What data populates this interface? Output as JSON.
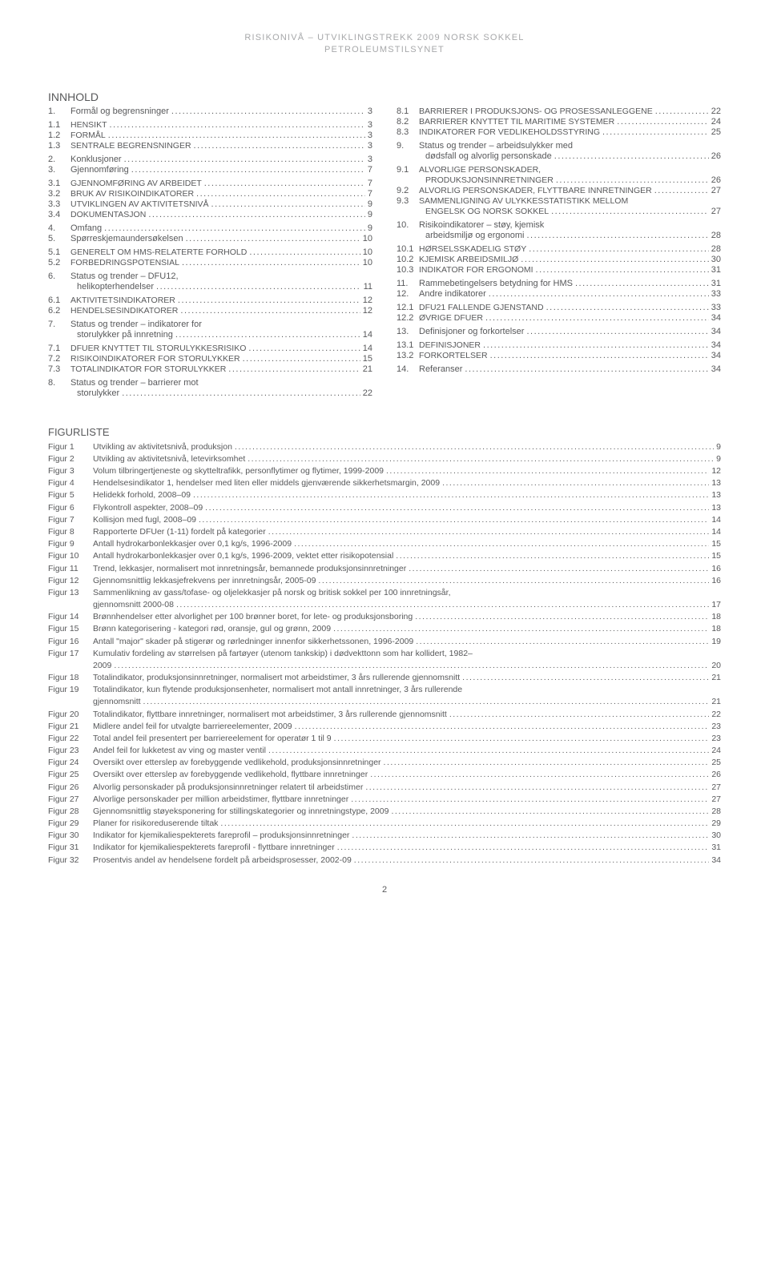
{
  "header": {
    "line1": "RISIKONIVÅ – UTVIKLINGSTREKK 2009 NORSK SOKKEL",
    "line2": "PETROLEUMSTILSYNET"
  },
  "innhold_title": "INNHOLD",
  "toc_left": [
    {
      "num": "1.",
      "label": "Formål og begrensninger",
      "page": "3",
      "lvl": 1
    },
    {
      "num": "1.1",
      "label": "HENSIKT",
      "page": "3",
      "lvl": 2,
      "sc": true
    },
    {
      "num": "1.2",
      "label": "FORMÅL",
      "page": "3",
      "lvl": 2,
      "sc": true
    },
    {
      "num": "1.3",
      "label": "SENTRALE BEGRENSNINGER",
      "page": "3",
      "lvl": 2,
      "sc": true
    },
    {
      "num": "2.",
      "label": "Konklusjoner",
      "page": "3",
      "lvl": 1
    },
    {
      "num": "3.",
      "label": "Gjennomføring",
      "page": "7",
      "lvl": 1
    },
    {
      "num": "3.1",
      "label": "GJENNOMFØRING AV ARBEIDET",
      "page": "7",
      "lvl": 2,
      "sc": true
    },
    {
      "num": "3.2",
      "label": "BRUK AV RISIKOINDIKATORER",
      "page": "7",
      "lvl": 2,
      "sc": true
    },
    {
      "num": "3.3",
      "label": "UTVIKLINGEN AV AKTIVITETSNIVÅ",
      "page": "9",
      "lvl": 2,
      "sc": true
    },
    {
      "num": "3.4",
      "label": "DOKUMENTASJON",
      "page": "9",
      "lvl": 2,
      "sc": true
    },
    {
      "num": "4.",
      "label": "Omfang",
      "page": "9",
      "lvl": 1
    },
    {
      "num": "5.",
      "label": "Spørreskjemaundersøkelsen",
      "page": "10",
      "lvl": 1
    },
    {
      "num": "5.1",
      "label": "GENERELT OM HMS-RELATERTE FORHOLD",
      "page": "10",
      "lvl": 2,
      "sc": true
    },
    {
      "num": "5.2",
      "label": "FORBEDRINGSPOTENSIAL",
      "page": "10",
      "lvl": 2,
      "sc": true
    },
    {
      "num": "6.",
      "label": "Status og trender – DFU12,",
      "page": "",
      "lvl": 1,
      "nodots": true
    },
    {
      "num": "",
      "label": "helikopterhendelser",
      "page": "11",
      "lvl": 1,
      "cont": true
    },
    {
      "num": "6.1",
      "label": "AKTIVITETSINDIKATORER",
      "page": "12",
      "lvl": 2,
      "sc": true
    },
    {
      "num": "6.2",
      "label": "HENDELSESINDIKATORER",
      "page": "12",
      "lvl": 2,
      "sc": true
    },
    {
      "num": "7.",
      "label": "Status og trender – indikatorer for",
      "page": "",
      "lvl": 1,
      "nodots": true
    },
    {
      "num": "",
      "label": "storulykker på innretning",
      "page": "14",
      "lvl": 1,
      "cont": true
    },
    {
      "num": "7.1",
      "label": "DFUER KNYTTET TIL STORULYKKESRISIKO",
      "page": "14",
      "lvl": 2,
      "sc": true
    },
    {
      "num": "7.2",
      "label": "RISIKOINDIKATORER FOR STORULYKKER",
      "page": "15",
      "lvl": 2,
      "sc": true
    },
    {
      "num": "7.3",
      "label": "TOTALINDIKATOR FOR STORULYKKER",
      "page": "21",
      "lvl": 2,
      "sc": true
    },
    {
      "num": "8.",
      "label": "Status og trender – barrierer mot",
      "page": "",
      "lvl": 1,
      "nodots": true
    },
    {
      "num": "",
      "label": "storulykker",
      "page": "22",
      "lvl": 1,
      "cont": true
    }
  ],
  "toc_right": [
    {
      "num": "8.1",
      "label": "BARRIERER I PRODUKSJONS- OG PROSESSANLEGGENE",
      "page": "22",
      "lvl": 2,
      "sc": true
    },
    {
      "num": "8.2",
      "label": "BARRIERER KNYTTET TIL MARITIME SYSTEMER",
      "page": "24",
      "lvl": 2,
      "sc": true
    },
    {
      "num": "8.3",
      "label": "INDIKATORER FOR VEDLIKEHOLDSSTYRING",
      "page": "25",
      "lvl": 2,
      "sc": true
    },
    {
      "num": "9.",
      "label": "Status og trender – arbeidsulykker med",
      "page": "",
      "lvl": 1,
      "nodots": true
    },
    {
      "num": "",
      "label": "dødsfall og alvorlig personskade",
      "page": "26",
      "lvl": 1,
      "cont": true
    },
    {
      "num": "9.1",
      "label": "ALVORLIGE PERSONSKADER,",
      "page": "",
      "lvl": 2,
      "sc": true,
      "nodots": true
    },
    {
      "num": "",
      "label": "PRODUKSJONSINNRETNINGER",
      "page": "26",
      "lvl": 2,
      "sc": true,
      "cont": true
    },
    {
      "num": "9.2",
      "label": "ALVORLIG PERSONSKADER, FLYTTBARE INNRETNINGER",
      "page": "27",
      "lvl": 2,
      "sc": true
    },
    {
      "num": "9.3",
      "label": "SAMMENLIGNING AV ULYKKESSTATISTIKK MELLOM",
      "page": "",
      "lvl": 2,
      "sc": true,
      "nodots": true
    },
    {
      "num": "",
      "label": "ENGELSK OG NORSK SOKKEL",
      "page": "27",
      "lvl": 2,
      "sc": true,
      "cont": true
    },
    {
      "num": "10.",
      "label": "Risikoindikatorer – støy, kjemisk",
      "page": "",
      "lvl": 1,
      "nodots": true
    },
    {
      "num": "",
      "label": "arbeidsmiljø og ergonomi",
      "page": "28",
      "lvl": 1,
      "cont": true
    },
    {
      "num": "10.1",
      "label": "HØRSELSSKADELIG STØY",
      "page": "28",
      "lvl": 2,
      "sc": true
    },
    {
      "num": "10.2",
      "label": "KJEMISK ARBEIDSMILJØ",
      "page": "30",
      "lvl": 2,
      "sc": true
    },
    {
      "num": "10.3",
      "label": "INDIKATOR FOR ERGONOMI",
      "page": "31",
      "lvl": 2,
      "sc": true
    },
    {
      "num": "11.",
      "label": "Rammebetingelsers betydning for HMS",
      "page": "31",
      "lvl": 1,
      "tight": true
    },
    {
      "num": "12.",
      "label": "Andre indikatorer",
      "page": "33",
      "lvl": 1
    },
    {
      "num": "12.1",
      "label": "DFU21 FALLENDE GJENSTAND",
      "page": "33",
      "lvl": 2,
      "sc": true
    },
    {
      "num": "12.2",
      "label": "ØVRIGE DFUER",
      "page": "34",
      "lvl": 2,
      "sc": true
    },
    {
      "num": "13.",
      "label": "Definisjoner og forkortelser",
      "page": "34",
      "lvl": 1
    },
    {
      "num": "13.1",
      "label": "DEFINISJONER",
      "page": "34",
      "lvl": 2,
      "sc": true
    },
    {
      "num": "13.2",
      "label": "FORKORTELSER",
      "page": "34",
      "lvl": 2,
      "sc": true
    },
    {
      "num": "14.",
      "label": "Referanser",
      "page": "34",
      "lvl": 1
    }
  ],
  "figurliste_title": "FIGURLISTE",
  "figurliste": [
    {
      "num": "Figur 1",
      "label": "Utvikling av aktivitetsnivå, produksjon",
      "page": "9"
    },
    {
      "num": "Figur 2",
      "label": "Utvikling av aktivitetsnivå, letevirksomhet",
      "page": "9"
    },
    {
      "num": "Figur 3",
      "label": "Volum tilbringertjeneste og skytteltrafikk, personflytimer og flytimer, 1999-2009",
      "page": "12"
    },
    {
      "num": "Figur 4",
      "label": "Hendelsesindikator 1, hendelser med liten eller middels gjenværende sikkerhetsmargin, 2009",
      "page": "13"
    },
    {
      "num": "Figur 5",
      "label": "Helidekk forhold, 2008–09",
      "page": "13"
    },
    {
      "num": "Figur 6",
      "label": "Flykontroll aspekter, 2008–09",
      "page": "13"
    },
    {
      "num": "Figur 7",
      "label": "Kollisjon med fugl, 2008–09",
      "page": "14"
    },
    {
      "num": "Figur 8",
      "label": "Rapporterte DFUer (1-11) fordelt på kategorier",
      "page": "14"
    },
    {
      "num": "Figur 9",
      "label": "Antall hydrokarbonlekkasjer over 0,1 kg/s, 1996-2009",
      "page": "15"
    },
    {
      "num": "Figur 10",
      "label": "Antall hydrokarbonlekkasjer over 0,1 kg/s, 1996-2009, vektet etter risikopotensial",
      "page": "15"
    },
    {
      "num": "Figur 11",
      "label": "Trend, lekkasjer, normalisert mot innretningsår, bemannede produksjonsinnretninger",
      "page": "16"
    },
    {
      "num": "Figur 12",
      "label": "Gjennomsnittlig lekkasjefrekvens per innretningsår, 2005-09",
      "page": "16"
    },
    {
      "num": "Figur 13",
      "label": "Sammenlikning av gass/tofase- og oljelekkasjer på norsk og britisk sokkel per 100 innretningsår,",
      "cont": "gjennomsnitt 2000-08",
      "page": "17"
    },
    {
      "num": "Figur 14",
      "label": "Brønnhendelser etter alvorlighet per 100 brønner boret, for lete- og produksjonsboring",
      "page": "18"
    },
    {
      "num": "Figur 15",
      "label": "Brønn kategorisering - kategori rød, oransje, gul og grønn, 2009",
      "page": "18"
    },
    {
      "num": "Figur 16",
      "label": "Antall \"major\" skader på stigerør og rørledninger innenfor sikkerhetssonen, 1996-2009",
      "page": "19"
    },
    {
      "num": "Figur 17",
      "label": "Kumulativ fordeling av størrelsen på fartøyer (utenom tankskip) i dødvekttonn som har kollidert, 1982–",
      "cont": "2009",
      "page": "20"
    },
    {
      "num": "Figur 18",
      "label": "Totalindikator, produksjonsinnretninger, normalisert mot arbeidstimer, 3 års rullerende gjennomsnitt",
      "page": "21"
    },
    {
      "num": "Figur 19",
      "label": "Totalindikator, kun flytende produksjonsenheter, normalisert mot antall innretninger, 3 års rullerende",
      "cont": "gjennomsnitt",
      "page": "21"
    },
    {
      "num": "Figur 20",
      "label": "Totalindikator, flyttbare innretninger, normalisert mot arbeidstimer, 3 års rullerende gjennomsnitt",
      "page": "22"
    },
    {
      "num": "Figur 21",
      "label": "Midlere andel feil for utvalgte barriereelementer, 2009",
      "page": "23"
    },
    {
      "num": "Figur 22",
      "label": "Total andel feil presentert per barriereelement for operatør 1 til 9",
      "page": "23"
    },
    {
      "num": "Figur 23",
      "label": "Andel feil for lukketest av ving og master ventil",
      "page": "24"
    },
    {
      "num": "Figur 24",
      "label": "Oversikt over etterslep av forebyggende vedlikehold, produksjonsinnretninger",
      "page": "25"
    },
    {
      "num": "Figur 25",
      "label": "Oversikt over etterslep av forebyggende vedlikehold, flyttbare innretninger",
      "page": "26"
    },
    {
      "num": "Figur 26",
      "label": "Alvorlig personskader på produksjonsinnretninger relatert til arbeidstimer",
      "page": "27"
    },
    {
      "num": "Figur 27",
      "label": "Alvorlige personskader per million arbeidstimer, flyttbare innretninger",
      "page": "27"
    },
    {
      "num": "Figur 28",
      "label": "Gjennomsnittlig støyeksponering for stillingskategorier og innretningstype, 2009",
      "page": "28"
    },
    {
      "num": "Figur 29",
      "label": "Planer for risikoreduserende tiltak",
      "page": "29"
    },
    {
      "num": "Figur 30",
      "label": "Indikator for kjemikaliespekterets fareprofil – produksjonsinnretninger",
      "page": "30"
    },
    {
      "num": "Figur 31",
      "label": "Indikator for kjemikaliespekterets fareprofil - flyttbare innretninger",
      "page": "31"
    },
    {
      "num": "Figur 32",
      "label": "Prosentvis andel av hendelsene fordelt på arbeidsprosesser, 2002-09",
      "page": "34"
    }
  ],
  "pagenum": "2"
}
